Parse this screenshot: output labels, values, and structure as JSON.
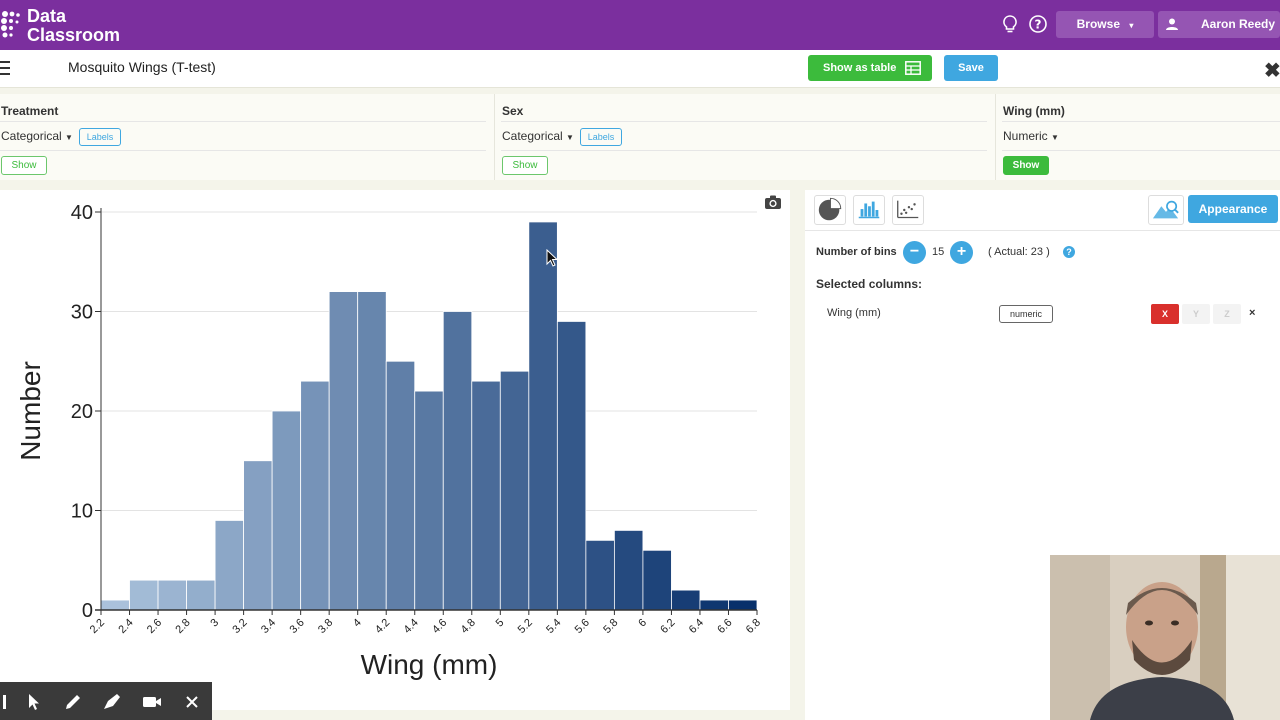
{
  "app": {
    "logo_line1": "Data",
    "logo_line2": "Classroom"
  },
  "topbar": {
    "browse_label": "Browse",
    "user_name": "Aaron Reedy"
  },
  "titlebar": {
    "title": "Mosquito Wings (T-test)",
    "show_table_label": "Show as table",
    "save_label": "Save"
  },
  "columns": [
    {
      "name": "Treatment",
      "type": "Categorical",
      "labels_label": "Labels",
      "show_label": "Show"
    },
    {
      "name": "Sex",
      "type": "Categorical",
      "labels_label": "Labels",
      "show_label": "Show"
    },
    {
      "name": "Wing (mm)",
      "type": "Numeric",
      "show_label": "Show"
    }
  ],
  "right_panel": {
    "appearance_label": "Appearance",
    "bins_label": "Number of bins",
    "bins_value": "15",
    "bins_actual": "( Actual: 23 )",
    "selected_columns_label": "Selected columns:",
    "selected_column_name": "Wing (mm)",
    "selected_column_type": "numeric",
    "axis_x": "X",
    "axis_y": "Y",
    "axis_z": "Z",
    "remove": "×"
  },
  "chart_data": {
    "type": "bar",
    "subtype": "histogram",
    "xlabel": "Wing (mm)",
    "ylabel": "Number",
    "ylim": [
      0,
      40
    ],
    "yticks": [
      0,
      10,
      20,
      30,
      40
    ],
    "xticks": [
      "2.2",
      "2.4",
      "2.6",
      "2.8",
      "3",
      "3.2",
      "3.4",
      "3.6",
      "3.8",
      "4",
      "4.2",
      "4.4",
      "4.6",
      "4.8",
      "5",
      "5.2",
      "5.4",
      "5.6",
      "5.8",
      "6",
      "6.2",
      "6.4",
      "6.6",
      "6.8"
    ],
    "values": [
      1,
      3,
      3,
      3,
      9,
      15,
      20,
      23,
      32,
      32,
      25,
      22,
      30,
      23,
      24,
      39,
      29,
      7,
      8,
      6,
      2,
      1,
      1
    ],
    "grid": true,
    "color_ramp": [
      "#c6dbef",
      "#08306b"
    ]
  }
}
